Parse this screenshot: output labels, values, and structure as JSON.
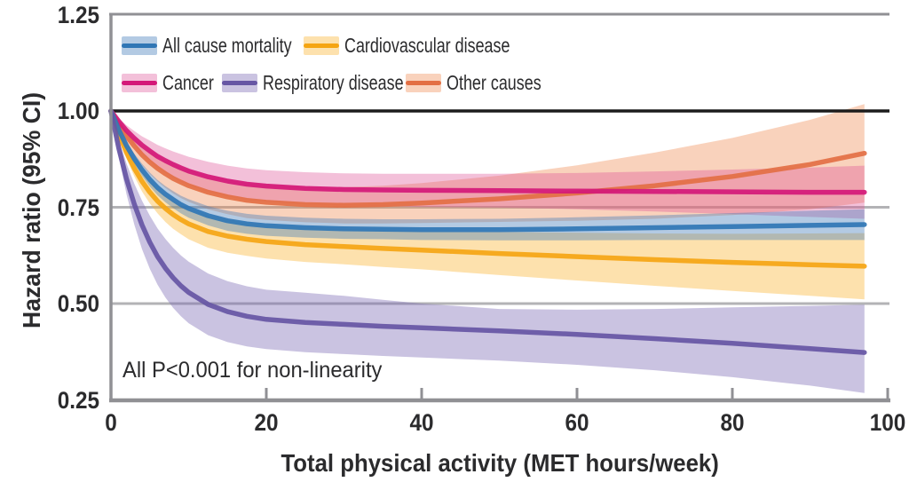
{
  "chart_data": {
    "type": "line",
    "title": "",
    "xlabel": "Total physical activity (MET hours/week)",
    "ylabel": "Hazard ratio (95% CI)",
    "annotation": "All P<0.001 for non-linearity",
    "xlim": [
      0,
      100
    ],
    "ylim": [
      0.25,
      1.25
    ],
    "xticks": [
      0,
      20,
      40,
      60,
      80,
      100
    ],
    "xtick_labels": [
      "0",
      "20",
      "40",
      "60",
      "80",
      "100"
    ],
    "yticks": [
      1.25,
      1.0,
      0.75,
      0.5,
      0.25
    ],
    "ytick_labels": [
      "1.25",
      "1.00",
      "0.75",
      "0.50",
      "0.25"
    ],
    "gridlines": [
      0.75,
      0.5
    ],
    "reference_line": 1.0,
    "grid": "on",
    "legend_position": "inside-top-left",
    "colors": {
      "axis": "#909094",
      "grid": "#b3b3b6",
      "reference": "#1c1c1c",
      "text": "#2b2b2d"
    },
    "x": [
      0,
      1,
      2,
      3,
      4,
      5,
      6,
      7,
      8,
      9,
      10,
      12.5,
      15,
      17.5,
      20,
      25,
      30,
      35,
      40,
      50,
      60,
      70,
      80,
      90,
      97
    ],
    "series": [
      {
        "name": "Other causes",
        "line": "#e36f44",
        "band": "rgba(238,130,70,0.36)",
        "y": [
          1.0,
          0.965,
          0.935,
          0.909,
          0.886,
          0.867,
          0.851,
          0.837,
          0.825,
          0.815,
          0.806,
          0.789,
          0.777,
          0.768,
          0.763,
          0.757,
          0.755,
          0.757,
          0.761,
          0.772,
          0.787,
          0.806,
          0.83,
          0.861,
          0.89
        ],
        "lo": [
          1.0,
          0.956,
          0.919,
          0.887,
          0.859,
          0.836,
          0.817,
          0.8,
          0.786,
          0.774,
          0.764,
          0.745,
          0.732,
          0.722,
          0.717,
          0.711,
          0.708,
          0.708,
          0.709,
          0.712,
          0.715,
          0.72,
          0.73,
          0.745,
          0.762
        ],
        "hi": [
          1.0,
          0.974,
          0.951,
          0.931,
          0.913,
          0.898,
          0.885,
          0.874,
          0.864,
          0.856,
          0.848,
          0.833,
          0.822,
          0.814,
          0.809,
          0.803,
          0.802,
          0.806,
          0.813,
          0.832,
          0.859,
          0.892,
          0.93,
          0.977,
          1.018
        ]
      },
      {
        "name": "Cancer",
        "line": "#d41878",
        "band": "rgba(221,80,150,0.36)",
        "y": [
          1.0,
          0.973,
          0.949,
          0.929,
          0.911,
          0.896,
          0.882,
          0.871,
          0.861,
          0.852,
          0.844,
          0.829,
          0.818,
          0.81,
          0.805,
          0.799,
          0.796,
          0.795,
          0.794,
          0.793,
          0.792,
          0.791,
          0.79,
          0.789,
          0.789
        ],
        "lo": [
          1.0,
          0.965,
          0.935,
          0.91,
          0.888,
          0.869,
          0.852,
          0.839,
          0.827,
          0.816,
          0.807,
          0.79,
          0.778,
          0.769,
          0.764,
          0.757,
          0.754,
          0.753,
          0.751,
          0.749,
          0.745,
          0.739,
          0.732,
          0.725,
          0.72
        ],
        "hi": [
          1.0,
          0.981,
          0.963,
          0.948,
          0.934,
          0.923,
          0.912,
          0.903,
          0.895,
          0.888,
          0.881,
          0.868,
          0.858,
          0.851,
          0.846,
          0.841,
          0.838,
          0.837,
          0.837,
          0.837,
          0.839,
          0.843,
          0.848,
          0.853,
          0.858
        ]
      },
      {
        "name": "Cardiovascular disease",
        "line": "#f5a513",
        "band": "rgba(250,175,40,0.38)",
        "y": [
          1.0,
          0.941,
          0.892,
          0.851,
          0.817,
          0.789,
          0.766,
          0.747,
          0.731,
          0.718,
          0.707,
          0.687,
          0.675,
          0.667,
          0.661,
          0.653,
          0.648,
          0.643,
          0.639,
          0.63,
          0.622,
          0.614,
          0.607,
          0.601,
          0.597
        ],
        "lo": [
          1.0,
          0.932,
          0.876,
          0.83,
          0.791,
          0.76,
          0.734,
          0.712,
          0.694,
          0.68,
          0.667,
          0.645,
          0.632,
          0.624,
          0.617,
          0.608,
          0.602,
          0.595,
          0.589,
          0.574,
          0.56,
          0.546,
          0.533,
          0.52,
          0.511
        ],
        "hi": [
          1.0,
          0.95,
          0.908,
          0.872,
          0.843,
          0.818,
          0.798,
          0.782,
          0.768,
          0.756,
          0.747,
          0.729,
          0.718,
          0.71,
          0.705,
          0.698,
          0.694,
          0.691,
          0.689,
          0.686,
          0.684,
          0.682,
          0.681,
          0.682,
          0.683
        ]
      },
      {
        "name": "All cause mortality",
        "line": "#3076b5",
        "band": "rgba(64,122,185,0.40)",
        "y": [
          1.0,
          0.951,
          0.91,
          0.876,
          0.847,
          0.822,
          0.801,
          0.784,
          0.77,
          0.757,
          0.747,
          0.728,
          0.715,
          0.707,
          0.702,
          0.697,
          0.694,
          0.693,
          0.692,
          0.692,
          0.694,
          0.697,
          0.7,
          0.703,
          0.705
        ],
        "lo": [
          1.0,
          0.945,
          0.9,
          0.863,
          0.831,
          0.804,
          0.781,
          0.763,
          0.748,
          0.734,
          0.723,
          0.703,
          0.689,
          0.681,
          0.676,
          0.671,
          0.668,
          0.667,
          0.665,
          0.664,
          0.664,
          0.665,
          0.665,
          0.665,
          0.665
        ],
        "hi": [
          1.0,
          0.957,
          0.92,
          0.889,
          0.863,
          0.84,
          0.821,
          0.805,
          0.792,
          0.78,
          0.771,
          0.753,
          0.741,
          0.733,
          0.728,
          0.723,
          0.72,
          0.719,
          0.719,
          0.72,
          0.724,
          0.729,
          0.735,
          0.741,
          0.745
        ]
      },
      {
        "name": "Respiratory disease",
        "line": "#6656a4",
        "band": "rgba(122,105,180,0.40)",
        "y": [
          1.0,
          0.903,
          0.824,
          0.758,
          0.704,
          0.659,
          0.622,
          0.592,
          0.567,
          0.546,
          0.529,
          0.498,
          0.479,
          0.467,
          0.459,
          0.451,
          0.446,
          0.441,
          0.437,
          0.429,
          0.42,
          0.409,
          0.397,
          0.383,
          0.373
        ],
        "lo": [
          1.0,
          0.881,
          0.784,
          0.705,
          0.641,
          0.59,
          0.549,
          0.516,
          0.489,
          0.467,
          0.449,
          0.418,
          0.4,
          0.389,
          0.382,
          0.374,
          0.369,
          0.364,
          0.36,
          0.352,
          0.341,
          0.327,
          0.309,
          0.287,
          0.268
        ],
        "hi": [
          1.0,
          0.925,
          0.864,
          0.811,
          0.767,
          0.728,
          0.695,
          0.668,
          0.645,
          0.625,
          0.609,
          0.578,
          0.558,
          0.545,
          0.536,
          0.528,
          0.52,
          0.51,
          0.5,
          0.486,
          0.484,
          0.486,
          0.49,
          0.494,
          0.497
        ]
      }
    ],
    "legend": {
      "order": [
        "All cause mortality",
        "Cardiovascular disease",
        "Cancer",
        "Respiratory disease",
        "Other causes"
      ]
    }
  }
}
